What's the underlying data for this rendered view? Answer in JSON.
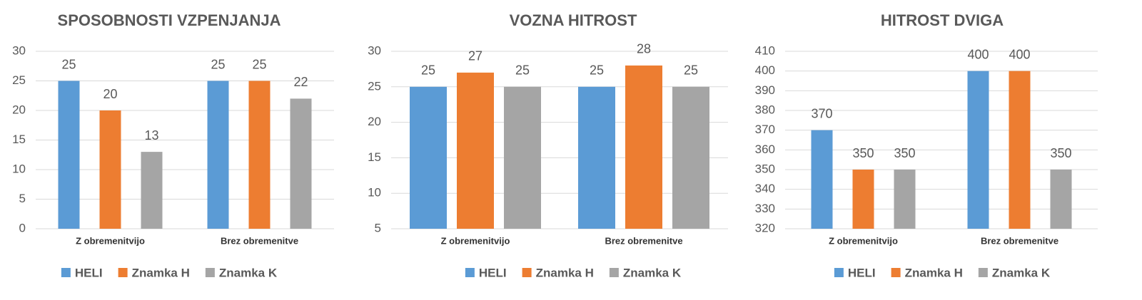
{
  "chart_data": [
    {
      "type": "bar",
      "title": "SPOSOBNOSTI VZPENJANJA",
      "categories": [
        "Z obremenitvijo",
        "Brez obremenitve"
      ],
      "series": [
        {
          "name": "HELI",
          "color": "#5b9bd5",
          "values": [
            25,
            25
          ]
        },
        {
          "name": "Znamka H",
          "color": "#ed7d31",
          "values": [
            20,
            25
          ]
        },
        {
          "name": "Znamka K",
          "color": "#a5a5a5",
          "values": [
            13,
            22
          ]
        }
      ],
      "ylim": [
        0,
        30
      ],
      "yticks": [
        0,
        5,
        10,
        15,
        20,
        25,
        30
      ],
      "grid": true,
      "legend": "bottom"
    },
    {
      "type": "bar",
      "title": "VOZNA HITROST",
      "categories": [
        "Z obremenitvijo",
        "Brez obremenitve"
      ],
      "series": [
        {
          "name": "HELI",
          "color": "#5b9bd5",
          "values": [
            25,
            25
          ]
        },
        {
          "name": "Znamka H",
          "color": "#ed7d31",
          "values": [
            27,
            28
          ]
        },
        {
          "name": "Znamka K",
          "color": "#a5a5a5",
          "values": [
            25,
            25
          ]
        }
      ],
      "ylim": [
        5,
        30
      ],
      "yticks": [
        5,
        10,
        15,
        20,
        25,
        30
      ],
      "grid": true,
      "legend": "bottom"
    },
    {
      "type": "bar",
      "title": "HITROST DVIGA",
      "categories": [
        "Z obremenitvijo",
        "Brez obremenitve"
      ],
      "series": [
        {
          "name": "HELI",
          "color": "#5b9bd5",
          "values": [
            370,
            400
          ]
        },
        {
          "name": "Znamka H",
          "color": "#ed7d31",
          "values": [
            350,
            400
          ]
        },
        {
          "name": "Znamka K",
          "color": "#a5a5a5",
          "values": [
            350,
            350
          ]
        }
      ],
      "ylim": [
        320,
        410
      ],
      "yticks": [
        320,
        330,
        340,
        350,
        360,
        370,
        380,
        390,
        400,
        410
      ],
      "grid": true,
      "legend": "bottom"
    }
  ]
}
